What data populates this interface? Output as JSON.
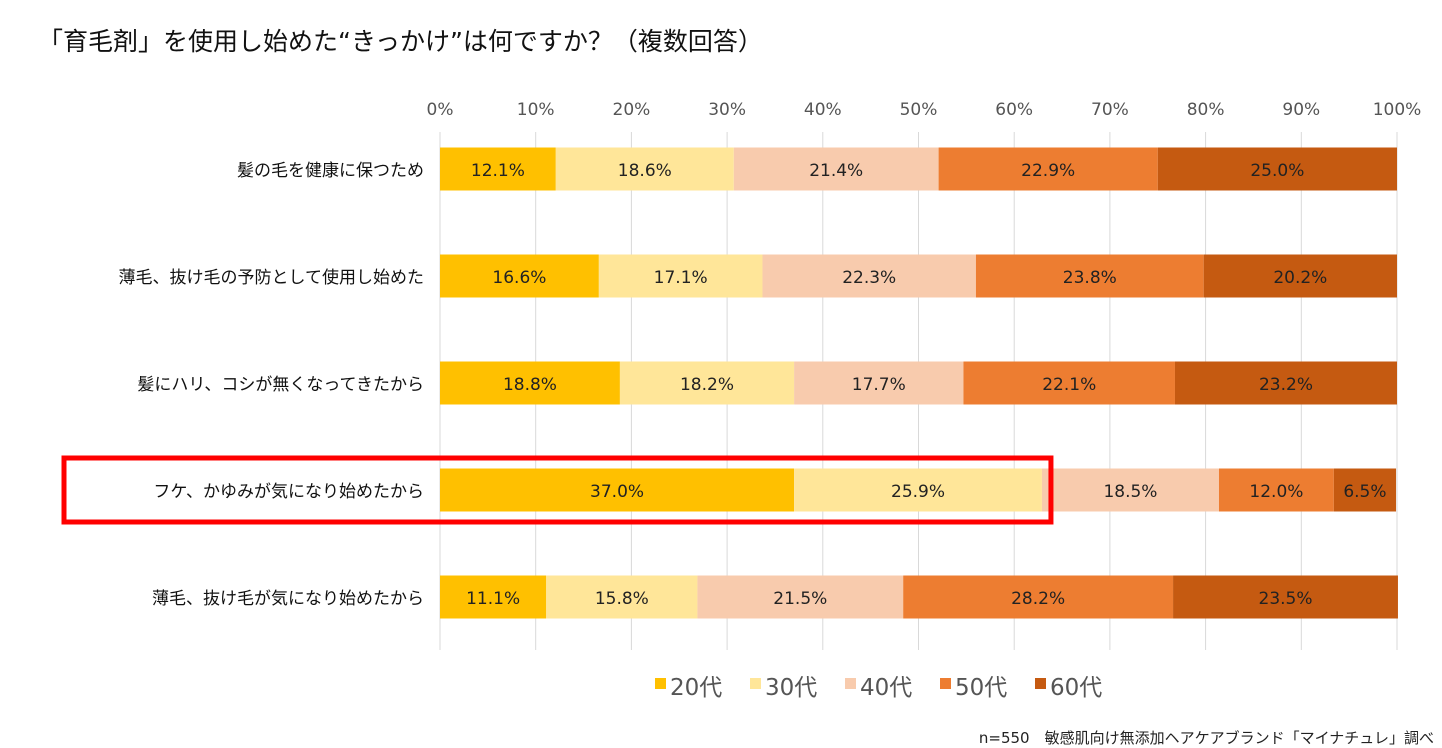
{
  "chart_data": {
    "type": "bar",
    "orientation": "horizontal",
    "stacked": true,
    "title": "「育毛剤」を使用し始めた“きっかけ”は何ですか？（複数回答）",
    "xlabel": "",
    "ylabel": "",
    "xlim": [
      0,
      100
    ],
    "x_ticks": [
      "0%",
      "10%",
      "20%",
      "30%",
      "40%",
      "50%",
      "60%",
      "70%",
      "80%",
      "90%",
      "100%"
    ],
    "grid": true,
    "legend_position": "bottom",
    "categories": [
      "髪の毛を健康に保つため",
      "薄毛、抜け毛の予防として使用し始めた",
      "髪にハリ、コシが無くなってきたから",
      "フケ、かゆみが気になり始めたから",
      "薄毛、抜け毛が気になり始めたから"
    ],
    "series": [
      {
        "name": "20代",
        "color": "#FFC000",
        "values": [
          12.1,
          16.6,
          18.8,
          37.0,
          11.1
        ],
        "labels": [
          "12.1%",
          "16.6%",
          "18.8%",
          "37.0%",
          "11.1%"
        ]
      },
      {
        "name": "30代",
        "color": "#FFE699",
        "values": [
          18.6,
          17.1,
          18.2,
          25.9,
          15.8
        ],
        "labels": [
          "18.6%",
          "17.1%",
          "18.2%",
          "25.9%",
          "15.8%"
        ]
      },
      {
        "name": "40代",
        "color": "#F8CBAD",
        "values": [
          21.4,
          22.3,
          17.7,
          18.5,
          21.5
        ],
        "labels": [
          "21.4%",
          "22.3%",
          "17.7%",
          "18.5%",
          "21.5%"
        ]
      },
      {
        "name": "50代",
        "color": "#ED7D31",
        "values": [
          22.9,
          23.8,
          22.1,
          12.0,
          28.2
        ],
        "labels": [
          "22.9%",
          "23.8%",
          "22.1%",
          "12.0%",
          "28.2%"
        ]
      },
      {
        "name": "60代",
        "color": "#C55A11",
        "values": [
          25.0,
          20.2,
          23.2,
          6.5,
          23.5
        ],
        "labels": [
          "25.0%",
          "20.2%",
          "23.2%",
          "6.5%",
          "23.5%"
        ]
      }
    ],
    "highlight": {
      "category_index": 3,
      "series_through": 1,
      "color": "#FF0000"
    },
    "footnote": "n=550　敏感肌向け無添加ヘアケアブランド「マイナチュレ」調べ"
  }
}
